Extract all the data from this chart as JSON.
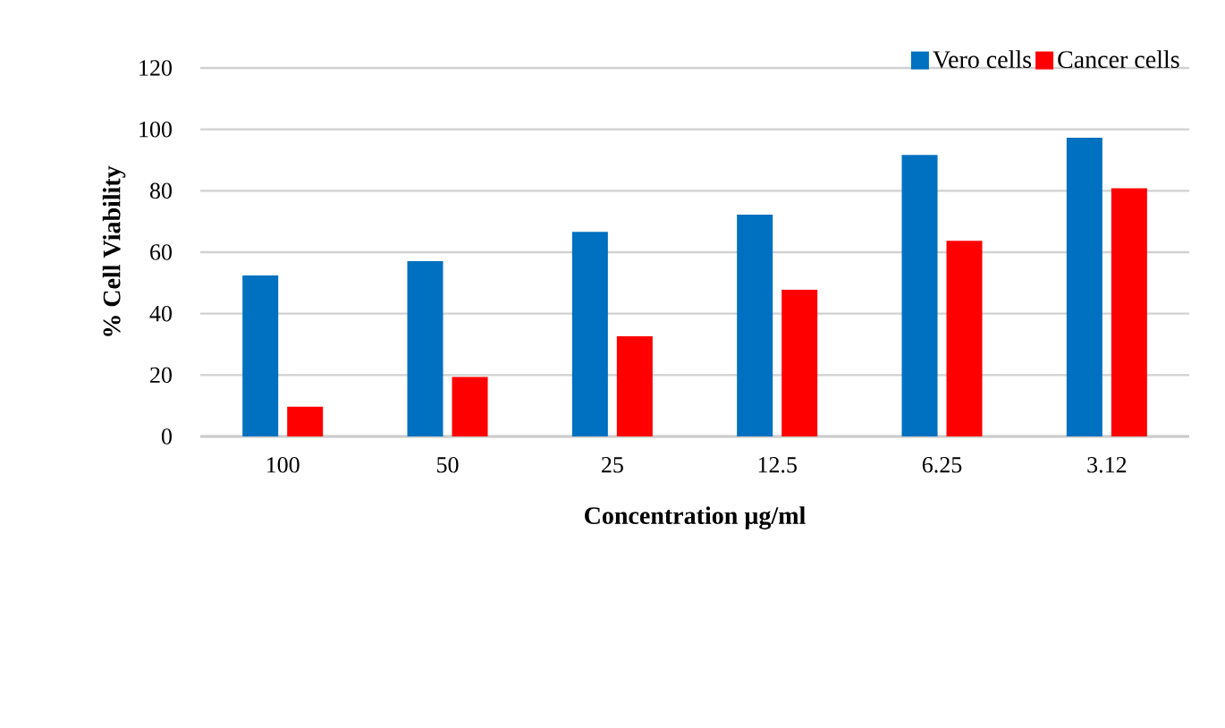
{
  "chart_data": {
    "type": "bar",
    "xlabel": "Concentration µg/ml",
    "ylabel": "% Cell Viability",
    "categories": [
      "100",
      "50",
      "25",
      "12.5",
      "6.25",
      "3.12"
    ],
    "series": [
      {
        "name": "Vero cells",
        "color": "#0070c0",
        "values": [
          52.4,
          57.1,
          66.6,
          72.2,
          91.7,
          97.3
        ]
      },
      {
        "name": "Cancer cells",
        "color": "#ff0000",
        "values": [
          9.7,
          19.4,
          32.6,
          47.8,
          63.7,
          80.8
        ]
      }
    ],
    "ylim": [
      0,
      120
    ],
    "yticks": [
      0,
      20,
      40,
      60,
      80,
      100,
      120
    ],
    "grid": "y",
    "legend": "top right"
  }
}
